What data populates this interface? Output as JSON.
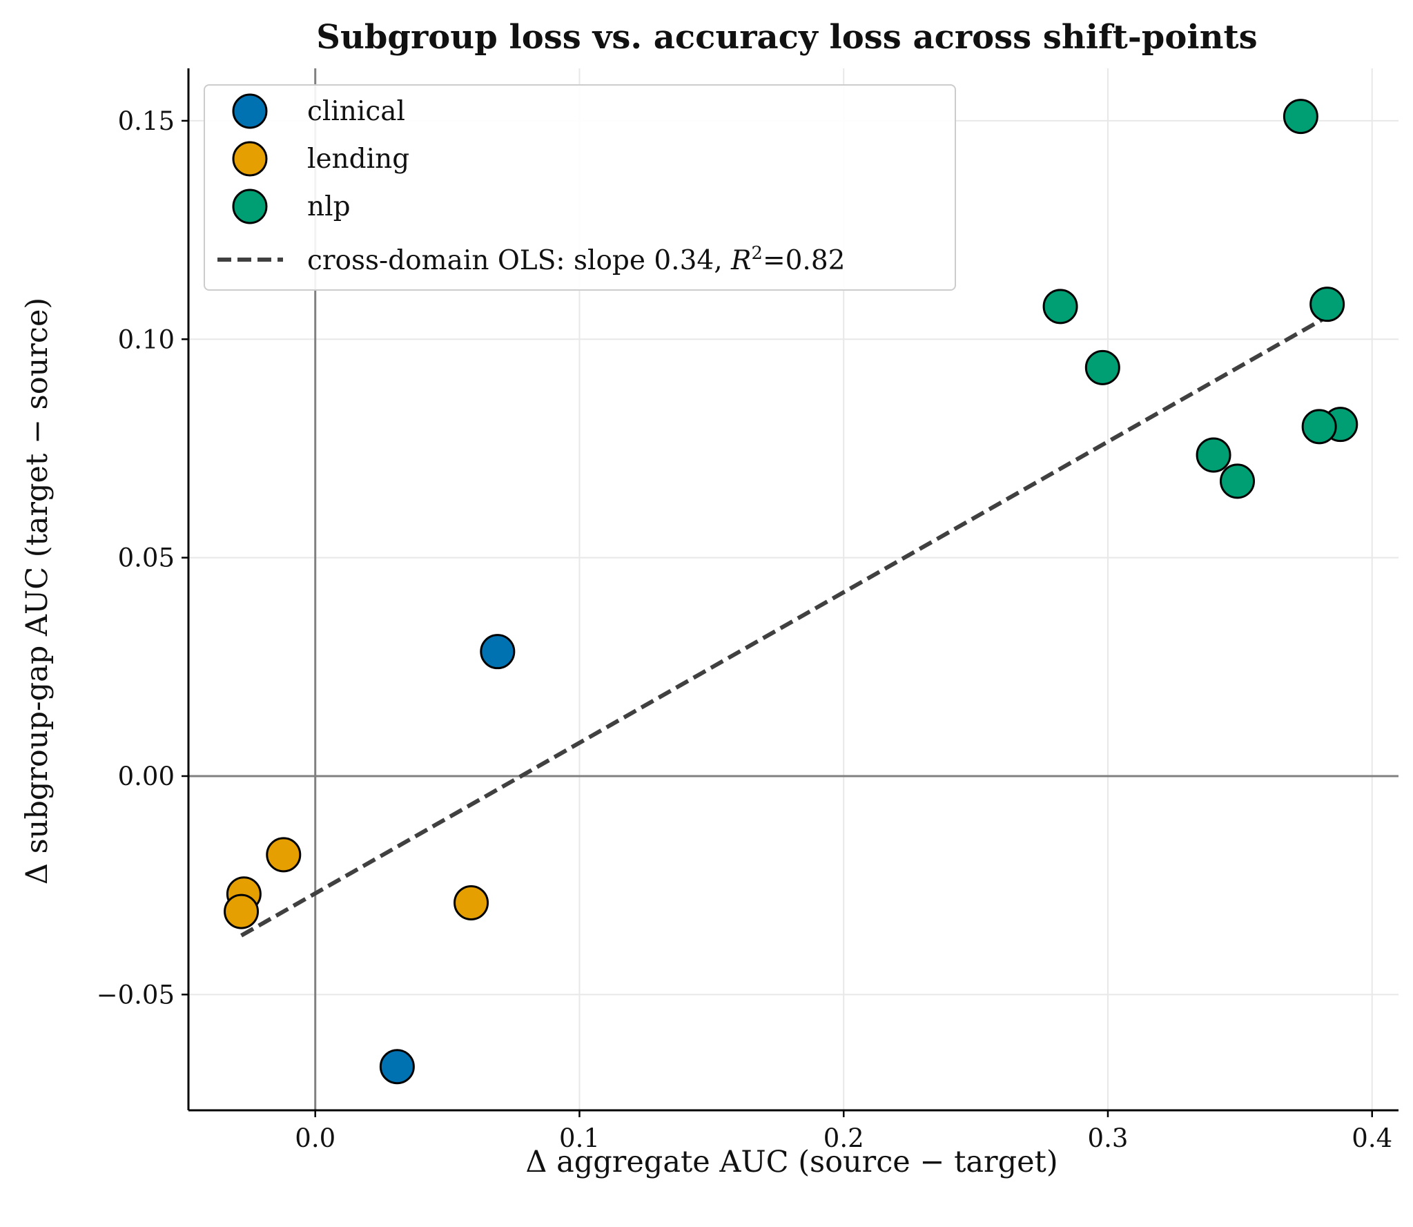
{
  "chart_data": {
    "type": "scatter",
    "title": "Subgroup loss vs. accuracy loss across shift-points",
    "xlabel": "Δ aggregate AUC  (source − target)",
    "ylabel": "Δ subgroup-gap AUC  (target − source)",
    "xlim": [
      -0.048,
      0.41
    ],
    "ylim": [
      -0.0765,
      0.162
    ],
    "xticks": [
      0.0,
      0.1,
      0.2,
      0.3,
      0.4
    ],
    "xtick_labels": [
      "0.0",
      "0.1",
      "0.2",
      "0.3",
      "0.4"
    ],
    "yticks": [
      -0.05,
      0.0,
      0.05,
      0.1,
      0.15
    ],
    "ytick_labels": [
      "−0.05",
      "0.00",
      "0.05",
      "0.10",
      "0.15"
    ],
    "grid": true,
    "reference_lines": {
      "x": 0,
      "y": 0
    },
    "legend_position": "upper-left",
    "series": [
      {
        "name": "clinical",
        "color": "#0072B2",
        "x": [
          0.069,
          0.031
        ],
        "y": [
          0.0285,
          -0.0665
        ]
      },
      {
        "name": "lending",
        "color": "#E69F00",
        "x": [
          -0.012,
          -0.027,
          -0.028,
          0.059
        ],
        "y": [
          -0.018,
          -0.027,
          -0.031,
          -0.029
        ]
      },
      {
        "name": "nlp",
        "color": "#009E73",
        "x": [
          0.373,
          0.282,
          0.298,
          0.383,
          0.388,
          0.38,
          0.34,
          0.349
        ],
        "y": [
          0.151,
          0.1075,
          0.0935,
          0.108,
          0.0805,
          0.08,
          0.0735,
          0.0675
        ]
      }
    ],
    "fit_line": {
      "name_prefix": "cross-domain OLS: slope 0.34, ",
      "r2_symbol": "R",
      "r2_exponent": "2",
      "r2_value": "=0.82",
      "color": "#404040",
      "x": [
        -0.028,
        0.384
      ],
      "y": [
        -0.0365,
        0.1055
      ]
    }
  }
}
